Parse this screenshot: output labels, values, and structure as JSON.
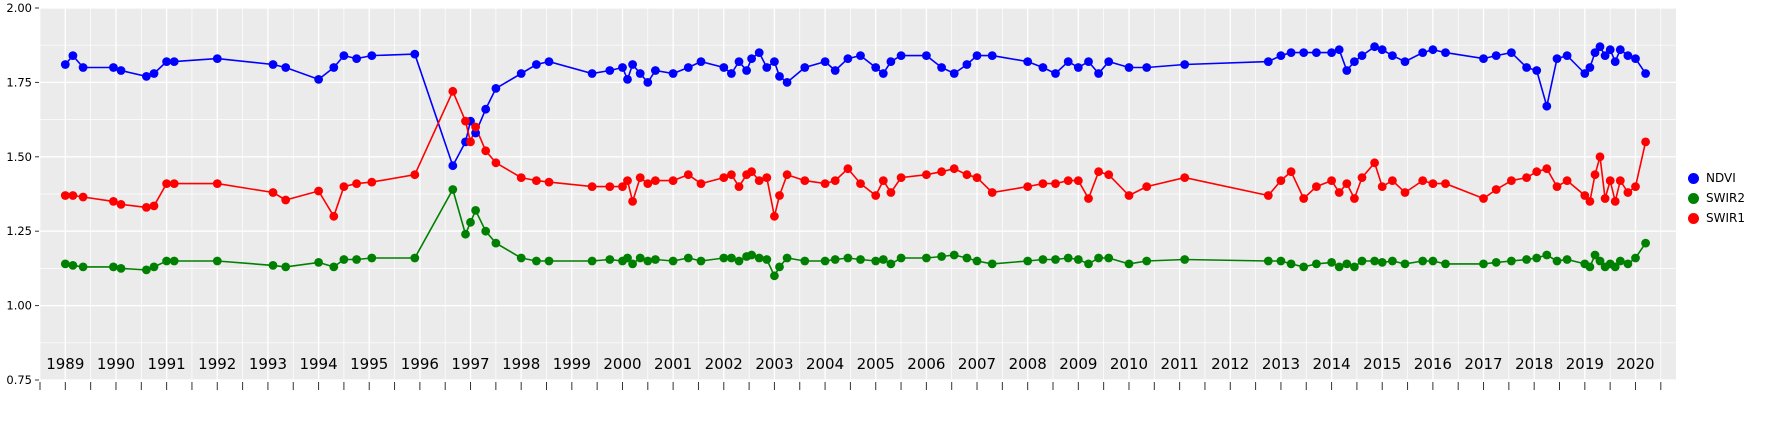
{
  "chart_data": {
    "type": "line",
    "title": "",
    "xlabel": "",
    "ylabel": "",
    "xlim": [
      1988.5,
      2020.8
    ],
    "ylim": [
      0.75,
      2.0
    ],
    "x_ticks": [
      1989,
      1990,
      1991,
      1992,
      1993,
      1994,
      1995,
      1996,
      1997,
      1998,
      1999,
      2000,
      2001,
      2002,
      2003,
      2004,
      2005,
      2006,
      2007,
      2008,
      2009,
      2010,
      2011,
      2012,
      2013,
      2014,
      2015,
      2016,
      2017,
      2018,
      2019,
      2020
    ],
    "y_ticks": [
      0.75,
      1.0,
      1.25,
      1.5,
      1.75,
      2.0
    ],
    "y_tick_labels": [
      "0.75",
      "1.00",
      "1.25",
      "1.50",
      "1.75",
      "2.00"
    ],
    "grid": true,
    "panel_bg": "#ebebeb",
    "grid_color": "#ffffff",
    "tick_color": "#333333",
    "text_color": "#000000",
    "legend_position": "right",
    "x": [
      1989.0,
      1989.15,
      1989.35,
      1989.95,
      1990.1,
      1990.6,
      1990.75,
      1991.0,
      1991.15,
      1992.0,
      1993.1,
      1993.35,
      1994.0,
      1994.3,
      1994.5,
      1994.75,
      1995.05,
      1995.9,
      1996.65,
      1996.9,
      1997.0,
      1997.1,
      1997.3,
      1997.5,
      1998.0,
      1998.3,
      1998.55,
      1999.4,
      1999.75,
      2000.0,
      2000.1,
      2000.2,
      2000.35,
      2000.5,
      2000.65,
      2001.0,
      2001.3,
      2001.55,
      2002.0,
      2002.15,
      2002.3,
      2002.45,
      2002.55,
      2002.7,
      2002.85,
      2003.0,
      2003.1,
      2003.25,
      2003.6,
      2004.0,
      2004.2,
      2004.45,
      2004.7,
      2005.0,
      2005.15,
      2005.3,
      2005.5,
      2006.0,
      2006.3,
      2006.55,
      2006.8,
      2007.0,
      2007.3,
      2008.0,
      2008.3,
      2008.55,
      2008.8,
      2009.0,
      2009.2,
      2009.4,
      2009.6,
      2010.0,
      2010.35,
      2011.1,
      2012.75,
      2013.0,
      2013.2,
      2013.45,
      2013.7,
      2014.0,
      2014.15,
      2014.3,
      2014.45,
      2014.6,
      2014.85,
      2015.0,
      2015.2,
      2015.45,
      2015.8,
      2016.0,
      2016.25,
      2017.0,
      2017.25,
      2017.55,
      2017.85,
      2018.05,
      2018.25,
      2018.45,
      2018.65,
      2019.0,
      2019.1,
      2019.2,
      2019.3,
      2019.4,
      2019.5,
      2019.6,
      2019.7,
      2019.85,
      2020.0,
      2020.2
    ],
    "series": [
      {
        "name": "NDVI",
        "color": "#0000ff",
        "values": [
          1.81,
          1.84,
          1.8,
          1.8,
          1.79,
          1.77,
          1.78,
          1.82,
          1.82,
          1.83,
          1.81,
          1.8,
          1.76,
          1.8,
          1.84,
          1.83,
          1.84,
          1.845,
          1.47,
          1.55,
          1.62,
          1.58,
          1.66,
          1.73,
          1.78,
          1.81,
          1.82,
          1.78,
          1.79,
          1.8,
          1.76,
          1.81,
          1.78,
          1.75,
          1.79,
          1.78,
          1.8,
          1.82,
          1.8,
          1.78,
          1.82,
          1.79,
          1.83,
          1.85,
          1.8,
          1.82,
          1.77,
          1.75,
          1.8,
          1.82,
          1.79,
          1.83,
          1.84,
          1.8,
          1.78,
          1.82,
          1.84,
          1.84,
          1.8,
          1.78,
          1.81,
          1.84,
          1.84,
          1.82,
          1.8,
          1.78,
          1.82,
          1.8,
          1.82,
          1.78,
          1.82,
          1.8,
          1.8,
          1.81,
          1.82,
          1.84,
          1.85,
          1.85,
          1.85,
          1.85,
          1.86,
          1.79,
          1.82,
          1.84,
          1.87,
          1.86,
          1.84,
          1.82,
          1.85,
          1.86,
          1.85,
          1.83,
          1.84,
          1.85,
          1.8,
          1.79,
          1.67,
          1.83,
          1.84,
          1.78,
          1.8,
          1.85,
          1.87,
          1.84,
          1.86,
          1.82,
          1.86,
          1.84,
          1.83,
          1.78
        ]
      },
      {
        "name": "SWIR2",
        "color": "#008000",
        "values": [
          1.14,
          1.135,
          1.13,
          1.13,
          1.125,
          1.12,
          1.13,
          1.15,
          1.15,
          1.15,
          1.135,
          1.13,
          1.145,
          1.13,
          1.155,
          1.155,
          1.16,
          1.16,
          1.39,
          1.24,
          1.28,
          1.32,
          1.25,
          1.21,
          1.16,
          1.15,
          1.15,
          1.15,
          1.155,
          1.15,
          1.16,
          1.14,
          1.16,
          1.15,
          1.155,
          1.15,
          1.16,
          1.15,
          1.16,
          1.16,
          1.15,
          1.165,
          1.17,
          1.16,
          1.155,
          1.1,
          1.13,
          1.16,
          1.15,
          1.15,
          1.155,
          1.16,
          1.155,
          1.15,
          1.155,
          1.14,
          1.16,
          1.16,
          1.165,
          1.17,
          1.16,
          1.15,
          1.14,
          1.15,
          1.155,
          1.155,
          1.16,
          1.155,
          1.14,
          1.16,
          1.16,
          1.14,
          1.15,
          1.155,
          1.15,
          1.15,
          1.14,
          1.13,
          1.14,
          1.145,
          1.13,
          1.14,
          1.13,
          1.15,
          1.15,
          1.145,
          1.15,
          1.14,
          1.15,
          1.15,
          1.14,
          1.14,
          1.145,
          1.15,
          1.155,
          1.16,
          1.17,
          1.15,
          1.155,
          1.14,
          1.13,
          1.17,
          1.15,
          1.13,
          1.14,
          1.13,
          1.15,
          1.14,
          1.16,
          1.21
        ]
      },
      {
        "name": "SWIR1",
        "color": "#ff0000",
        "values": [
          1.37,
          1.37,
          1.365,
          1.35,
          1.34,
          1.33,
          1.335,
          1.41,
          1.41,
          1.41,
          1.38,
          1.355,
          1.385,
          1.3,
          1.4,
          1.41,
          1.415,
          1.44,
          1.72,
          1.62,
          1.55,
          1.6,
          1.52,
          1.48,
          1.43,
          1.42,
          1.415,
          1.4,
          1.4,
          1.4,
          1.42,
          1.35,
          1.43,
          1.41,
          1.42,
          1.42,
          1.44,
          1.41,
          1.43,
          1.44,
          1.4,
          1.44,
          1.45,
          1.42,
          1.43,
          1.3,
          1.37,
          1.44,
          1.42,
          1.41,
          1.42,
          1.46,
          1.41,
          1.37,
          1.42,
          1.38,
          1.43,
          1.44,
          1.45,
          1.46,
          1.44,
          1.43,
          1.38,
          1.4,
          1.41,
          1.41,
          1.42,
          1.42,
          1.36,
          1.45,
          1.44,
          1.37,
          1.4,
          1.43,
          1.37,
          1.42,
          1.45,
          1.36,
          1.4,
          1.42,
          1.38,
          1.41,
          1.36,
          1.43,
          1.48,
          1.4,
          1.42,
          1.38,
          1.42,
          1.41,
          1.41,
          1.36,
          1.39,
          1.42,
          1.43,
          1.45,
          1.46,
          1.4,
          1.42,
          1.37,
          1.35,
          1.44,
          1.5,
          1.36,
          1.42,
          1.35,
          1.42,
          1.38,
          1.4,
          1.55
        ]
      }
    ],
    "legend_entries": [
      {
        "label": "NDVI",
        "color": "#0000ff"
      },
      {
        "label": "SWIR2",
        "color": "#008000"
      },
      {
        "label": "SWIR1",
        "color": "#ff0000"
      }
    ]
  }
}
